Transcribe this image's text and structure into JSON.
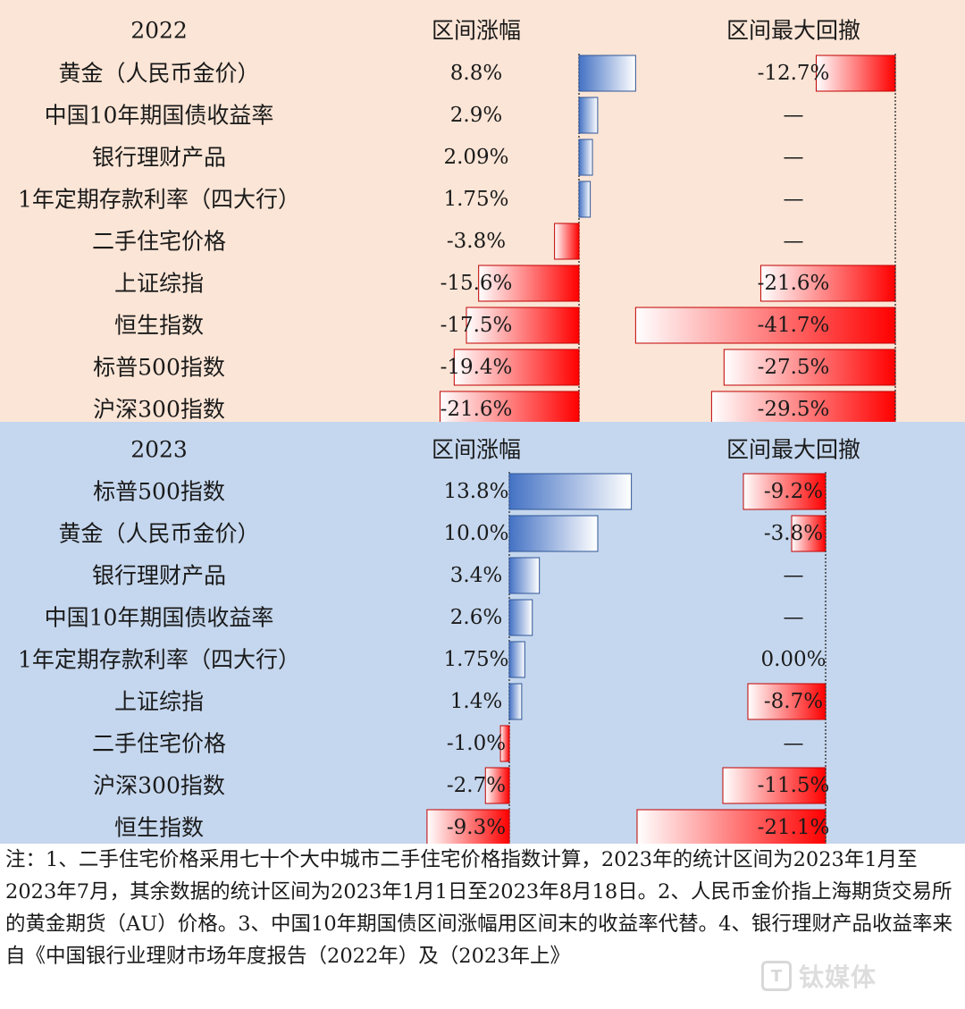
{
  "chart_data": [
    {
      "type": "table",
      "year": "2022",
      "columns": [
        "2022",
        "区间涨幅",
        "区间最大回撤"
      ],
      "rows": [
        {
          "name": "黄金（人民币金价）",
          "gain": 8.8,
          "gain_label": "8.8%",
          "dd": -12.7,
          "dd_label": "-12.7%"
        },
        {
          "name": "中国10年期国债收益率",
          "gain": 2.9,
          "gain_label": "2.9%",
          "dd": null,
          "dd_label": "—"
        },
        {
          "name": "银行理财产品",
          "gain": 2.09,
          "gain_label": "2.09%",
          "dd": null,
          "dd_label": "—"
        },
        {
          "name": "1年定期存款利率（四大行）",
          "gain": 1.75,
          "gain_label": "1.75%",
          "dd": null,
          "dd_label": "—"
        },
        {
          "name": "二手住宅价格",
          "gain": -3.8,
          "gain_label": "-3.8%",
          "dd": null,
          "dd_label": "—"
        },
        {
          "name": "上证综指",
          "gain": -15.6,
          "gain_label": "-15.6%",
          "dd": -21.6,
          "dd_label": "-21.6%"
        },
        {
          "name": "恒生指数",
          "gain": -17.5,
          "gain_label": "-17.5%",
          "dd": -41.7,
          "dd_label": "-41.7%"
        },
        {
          "name": "标普500指数",
          "gain": -19.4,
          "gain_label": "-19.4%",
          "dd": -27.5,
          "dd_label": "-27.5%"
        },
        {
          "name": "沪深300指数",
          "gain": -21.6,
          "gain_label": "-21.6%",
          "dd": -29.5,
          "dd_label": "-29.5%"
        }
      ]
    },
    {
      "type": "table",
      "year": "2023",
      "columns": [
        "2023",
        "区间涨幅",
        "区间最大回撤"
      ],
      "rows": [
        {
          "name": "标普500指数",
          "gain": 13.8,
          "gain_label": "13.8%",
          "dd": -9.2,
          "dd_label": "-9.2%"
        },
        {
          "name": "黄金（人民币金价）",
          "gain": 10.0,
          "gain_label": "10.0%",
          "dd": -3.8,
          "dd_label": "-3.8%"
        },
        {
          "name": "银行理财产品",
          "gain": 3.4,
          "gain_label": "3.4%",
          "dd": null,
          "dd_label": "—"
        },
        {
          "name": "中国10年期国债收益率",
          "gain": 2.6,
          "gain_label": "2.6%",
          "dd": null,
          "dd_label": "—"
        },
        {
          "name": "1年定期存款利率（四大行）",
          "gain": 1.75,
          "gain_label": "1.75%",
          "dd": 0.0,
          "dd_label": "0.00%"
        },
        {
          "name": "上证综指",
          "gain": 1.4,
          "gain_label": "1.4%",
          "dd": -8.7,
          "dd_label": "-8.7%"
        },
        {
          "name": "二手住宅价格",
          "gain": -1.0,
          "gain_label": "-1.0%",
          "dd": null,
          "dd_label": "—"
        },
        {
          "name": "沪深300指数",
          "gain": -2.7,
          "gain_label": "-2.7%",
          "dd": -11.5,
          "dd_label": "-11.5%"
        },
        {
          "name": "恒生指数",
          "gain": -9.3,
          "gain_label": "-9.3%",
          "dd": -21.1,
          "dd_label": "-21.1%"
        }
      ]
    }
  ],
  "note": "注：1、二手住宅价格采用七十个大中城市二手住宅价格指数计算，2023年的统计区间为2023年1月至2023年7月，其余数据的统计区间为2023年1月1日至2023年8月18日。2、人民币金价指上海期货交易所的黄金期货（AU）价格。3、中国10年期国债区间涨幅用区间末的收益率代替。4、银行理财产品收益率来自《中国银行业理财市场年度报告（2022年）及（2023年上》",
  "watermark": "钛媒体",
  "colors": {
    "bg_2022": "#fbe5d6",
    "bg_2023": "#c5d7ee",
    "positive_bar": "#4472c4",
    "negative_bar": "#ff0000"
  }
}
